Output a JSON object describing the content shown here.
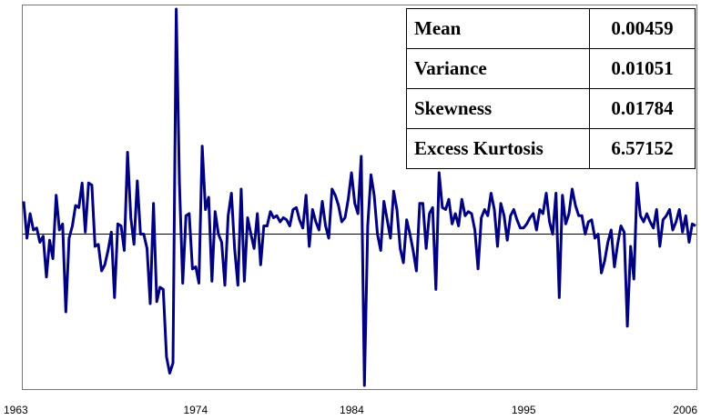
{
  "chart_data": {
    "type": "line",
    "title": "",
    "xlabel": "",
    "ylabel": "",
    "x_tick_labels": [
      "1963",
      "1974",
      "1984",
      "1995",
      "2006"
    ],
    "x_range": [
      1963,
      2006
    ],
    "y_range": [
      -0.74,
      1.1
    ],
    "zero_line": true,
    "grid": false,
    "colors": {
      "series": "#000080",
      "zero_line": "#000000",
      "frame": "#777777"
    },
    "series": [
      {
        "values": [
          0.16,
          -0.02,
          0.1,
          0.02,
          0.03,
          -0.04,
          -0.01,
          -0.21,
          -0.03,
          -0.12,
          0.19,
          0.02,
          0.05,
          -0.38,
          -0.02,
          0.04,
          0.14,
          0.13,
          0.25,
          0.01,
          0.25,
          0.24,
          -0.06,
          -0.05,
          -0.18,
          -0.15,
          -0.08,
          0.01,
          -0.31,
          0.05,
          0.04,
          -0.08,
          0.4,
          0.08,
          -0.05,
          0.26,
          0.0,
          0.0,
          -0.07,
          -0.34,
          0.15,
          -0.33,
          -0.26,
          -0.27,
          -0.6,
          -0.68,
          -0.63,
          1.1,
          0.25,
          -0.24,
          0.09,
          0.1,
          -0.17,
          -0.16,
          -0.24,
          0.43,
          0.12,
          0.18,
          -0.23,
          0.11,
          0.0,
          -0.04,
          -0.25,
          0.09,
          0.2,
          -0.07,
          -0.25,
          0.22,
          -0.23,
          0.08,
          0.0,
          -0.07,
          0.1,
          -0.15,
          0.04,
          0.04,
          0.11,
          0.08,
          0.09,
          0.06,
          0.08,
          0.07,
          0.04,
          0.12,
          0.13,
          0.07,
          0.03,
          0.19,
          -0.06,
          0.12,
          0.06,
          0.02,
          0.16,
          0.04,
          -0.02,
          0.22,
          0.19,
          0.14,
          0.06,
          0.08,
          0.17,
          0.3,
          0.15,
          0.1,
          0.38,
          -0.74,
          0.04,
          0.29,
          0.19,
          0.0,
          -0.08,
          0.16,
          0.07,
          -0.02,
          0.21,
          0.12,
          -0.07,
          -0.14,
          0.07,
          0.0,
          -0.08,
          -0.18,
          0.15,
          0.15,
          -0.07,
          0.1,
          0.13,
          -0.27,
          0.3,
          0.13,
          0.12,
          0.17,
          0.05,
          0.1,
          0.04,
          0.17,
          0.09,
          0.11,
          0.1,
          0.02,
          -0.17,
          0.08,
          0.12,
          0.09,
          0.2,
          0.12,
          -0.06,
          0.15,
          0.09,
          -0.03,
          0.09,
          0.12,
          0.07,
          0.03,
          0.03,
          0.05,
          0.08,
          0.1,
          0.02,
          0.12,
          0.1,
          0.2,
          0.06,
          0.0,
          0.2,
          -0.31,
          0.19,
          0.05,
          0.1,
          0.22,
          0.14,
          0.09,
          0.09,
          0.0,
          0.06,
          0.07,
          -0.02,
          0.0,
          -0.19,
          -0.13,
          -0.04,
          0.02,
          -0.16,
          -0.05,
          0.04,
          0.01,
          -0.45,
          -0.06,
          -0.22,
          0.25,
          0.09,
          0.06,
          0.1,
          0.06,
          0.03,
          0.12,
          -0.06,
          0.07,
          0.09,
          0.12,
          0.02,
          0.06,
          0.12,
          0.01,
          0.09,
          -0.04,
          0.05,
          0.04
        ]
      }
    ]
  },
  "stats": [
    {
      "name": "Mean",
      "value": "0.00459"
    },
    {
      "name": "Variance",
      "value": "0.01051"
    },
    {
      "name": "Skewness",
      "value": "0.01784"
    },
    {
      "name": "Excess Kurtosis",
      "value": "6.57152"
    }
  ]
}
